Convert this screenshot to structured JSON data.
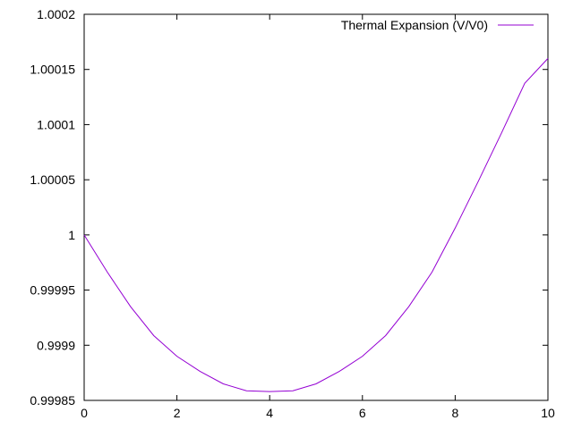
{
  "chart_data": {
    "type": "line",
    "title": "",
    "xlabel": "",
    "ylabel": "",
    "xlim": [
      0,
      10
    ],
    "ylim": [
      0.99985,
      1.0002
    ],
    "x_ticks": [
      "0",
      "2",
      "4",
      "6",
      "8",
      "10"
    ],
    "y_ticks": [
      "0.99985",
      "0.9999",
      "0.99995",
      "1",
      "1.00005",
      "1.0001",
      "1.00015",
      "1.0002"
    ],
    "grid": false,
    "legend_position": "top-right",
    "series": [
      {
        "name": "Thermal Expansion (V/V0)",
        "color": "#9400d3",
        "x": [
          0,
          0.5,
          1,
          1.5,
          2,
          2.5,
          3,
          3.5,
          4,
          4.5,
          5,
          5.5,
          6,
          6.5,
          7,
          7.5,
          8,
          8.5,
          9,
          9.5,
          10
        ],
        "y": [
          1.0,
          0.99996625,
          0.999935,
          0.99990875,
          0.99989,
          0.99987625,
          0.999865,
          0.99985875,
          0.999858,
          0.99985875,
          0.999865,
          0.99987625,
          0.99989,
          0.99990875,
          0.999935,
          0.99996625,
          1.00000625,
          1.00004875,
          1.0000925,
          1.0001375,
          1.00016
        ]
      }
    ]
  }
}
